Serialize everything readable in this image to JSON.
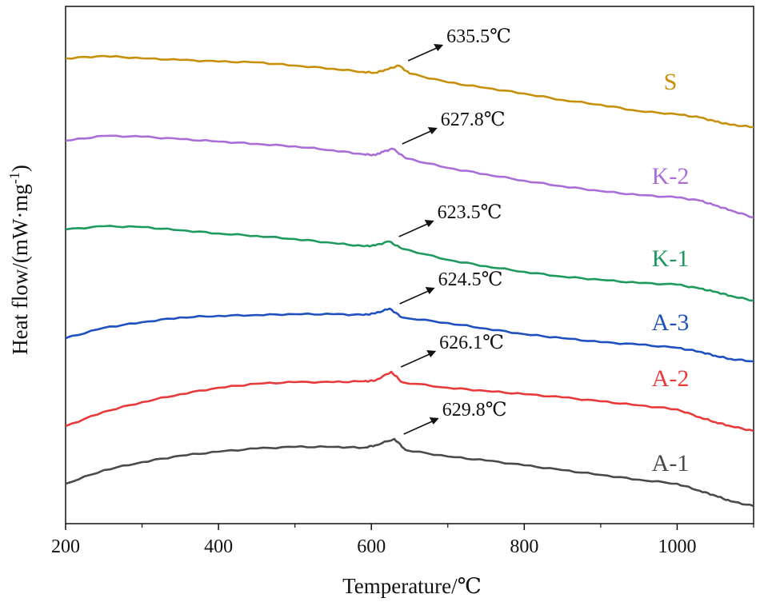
{
  "chart_data": {
    "type": "line",
    "title": "",
    "xlabel": "Temperature/℃",
    "ylabel": "Heat flow/(mW·mg",
    "ylabel_sup": "-1",
    "ylabel_close": ")",
    "xlim": [
      200,
      1100
    ],
    "xticks": [
      {
        "value": 200,
        "label": "200"
      },
      {
        "value": 400,
        "label": "400"
      },
      {
        "value": 600,
        "label": "600"
      },
      {
        "value": 800,
        "label": "800"
      },
      {
        "value": 1000,
        "label": "1000"
      }
    ],
    "minor_tick_step": 100,
    "y_axis_ticks": false,
    "grid": false,
    "series": [
      {
        "name": "S",
        "color": "#C8900A",
        "peak_label": "635.5℃",
        "peak_x": 635.5,
        "points": [
          [
            200,
            73
          ],
          [
            250,
            70
          ],
          [
            300,
            73
          ],
          [
            350,
            75
          ],
          [
            400,
            77
          ],
          [
            450,
            78
          ],
          [
            500,
            82
          ],
          [
            550,
            86
          ],
          [
            590,
            90
          ],
          [
            605,
            91
          ],
          [
            620,
            87
          ],
          [
            636,
            82
          ],
          [
            650,
            92
          ],
          [
            700,
            103
          ],
          [
            750,
            110
          ],
          [
            800,
            117
          ],
          [
            850,
            125
          ],
          [
            900,
            131
          ],
          [
            950,
            139
          ],
          [
            1000,
            143
          ],
          [
            1030,
            147
          ],
          [
            1050,
            152
          ],
          [
            1070,
            156
          ],
          [
            1100,
            159
          ]
        ]
      },
      {
        "name": "K-2",
        "color": "#A96ED8",
        "peak_label": "627.8℃",
        "peak_x": 627.8,
        "points": [
          [
            200,
            176
          ],
          [
            250,
            170
          ],
          [
            300,
            171
          ],
          [
            350,
            174
          ],
          [
            400,
            177
          ],
          [
            450,
            180
          ],
          [
            500,
            183
          ],
          [
            550,
            188
          ],
          [
            590,
            193
          ],
          [
            605,
            194
          ],
          [
            615,
            190
          ],
          [
            628,
            186
          ],
          [
            645,
            198
          ],
          [
            700,
            210
          ],
          [
            750,
            218
          ],
          [
            800,
            226
          ],
          [
            850,
            233
          ],
          [
            900,
            239
          ],
          [
            950,
            244
          ],
          [
            1000,
            247
          ],
          [
            1030,
            251
          ],
          [
            1050,
            257
          ],
          [
            1070,
            263
          ],
          [
            1100,
            272
          ]
        ]
      },
      {
        "name": "K-1",
        "color": "#1E9A5E",
        "peak_label": "623.5℃",
        "peak_x": 623.5,
        "points": [
          [
            200,
            287
          ],
          [
            250,
            283
          ],
          [
            300,
            284
          ],
          [
            350,
            288
          ],
          [
            400,
            292
          ],
          [
            450,
            295
          ],
          [
            500,
            299
          ],
          [
            550,
            304
          ],
          [
            590,
            308
          ],
          [
            605,
            307
          ],
          [
            623,
            302
          ],
          [
            640,
            311
          ],
          [
            700,
            325
          ],
          [
            750,
            333
          ],
          [
            800,
            340
          ],
          [
            850,
            346
          ],
          [
            900,
            350
          ],
          [
            950,
            354
          ],
          [
            1000,
            356
          ],
          [
            1030,
            361
          ],
          [
            1050,
            365
          ],
          [
            1070,
            370
          ],
          [
            1100,
            376
          ]
        ]
      },
      {
        "name": "A-3",
        "color": "#1E50C0",
        "peak_label": "624.5℃",
        "peak_x": 624.5,
        "points": [
          [
            200,
            423
          ],
          [
            250,
            410
          ],
          [
            300,
            403
          ],
          [
            350,
            397
          ],
          [
            400,
            395
          ],
          [
            450,
            394
          ],
          [
            500,
            393
          ],
          [
            550,
            393
          ],
          [
            590,
            394
          ],
          [
            605,
            392
          ],
          [
            624,
            386
          ],
          [
            640,
            397
          ],
          [
            700,
            404
          ],
          [
            750,
            411
          ],
          [
            800,
            418
          ],
          [
            850,
            423
          ],
          [
            900,
            428
          ],
          [
            950,
            431
          ],
          [
            1000,
            435
          ],
          [
            1030,
            440
          ],
          [
            1050,
            445
          ],
          [
            1070,
            449
          ],
          [
            1100,
            452
          ]
        ]
      },
      {
        "name": "A-2",
        "color": "#E83A3A",
        "peak_label": "626.1℃",
        "peak_x": 626.1,
        "points": [
          [
            200,
            533
          ],
          [
            250,
            515
          ],
          [
            300,
            503
          ],
          [
            350,
            493
          ],
          [
            400,
            485
          ],
          [
            450,
            480
          ],
          [
            500,
            478
          ],
          [
            550,
            478
          ],
          [
            590,
            477
          ],
          [
            605,
            476
          ],
          [
            626,
            465
          ],
          [
            640,
            478
          ],
          [
            700,
            485
          ],
          [
            750,
            489
          ],
          [
            800,
            493
          ],
          [
            850,
            497
          ],
          [
            900,
            502
          ],
          [
            950,
            507
          ],
          [
            1000,
            512
          ],
          [
            1030,
            522
          ],
          [
            1050,
            528
          ],
          [
            1070,
            533
          ],
          [
            1100,
            539
          ]
        ]
      },
      {
        "name": "A-1",
        "color": "#4A4A4A",
        "peak_label": "629.8℃",
        "peak_x": 629.8,
        "points": [
          [
            200,
            605
          ],
          [
            250,
            588
          ],
          [
            300,
            578
          ],
          [
            350,
            570
          ],
          [
            400,
            565
          ],
          [
            450,
            561
          ],
          [
            500,
            559
          ],
          [
            550,
            559
          ],
          [
            590,
            560
          ],
          [
            605,
            557
          ],
          [
            630,
            549
          ],
          [
            645,
            563
          ],
          [
            700,
            571
          ],
          [
            750,
            576
          ],
          [
            800,
            582
          ],
          [
            850,
            588
          ],
          [
            900,
            594
          ],
          [
            950,
            600
          ],
          [
            1000,
            605
          ],
          [
            1030,
            614
          ],
          [
            1050,
            620
          ],
          [
            1070,
            627
          ],
          [
            1100,
            633
          ]
        ]
      }
    ]
  }
}
